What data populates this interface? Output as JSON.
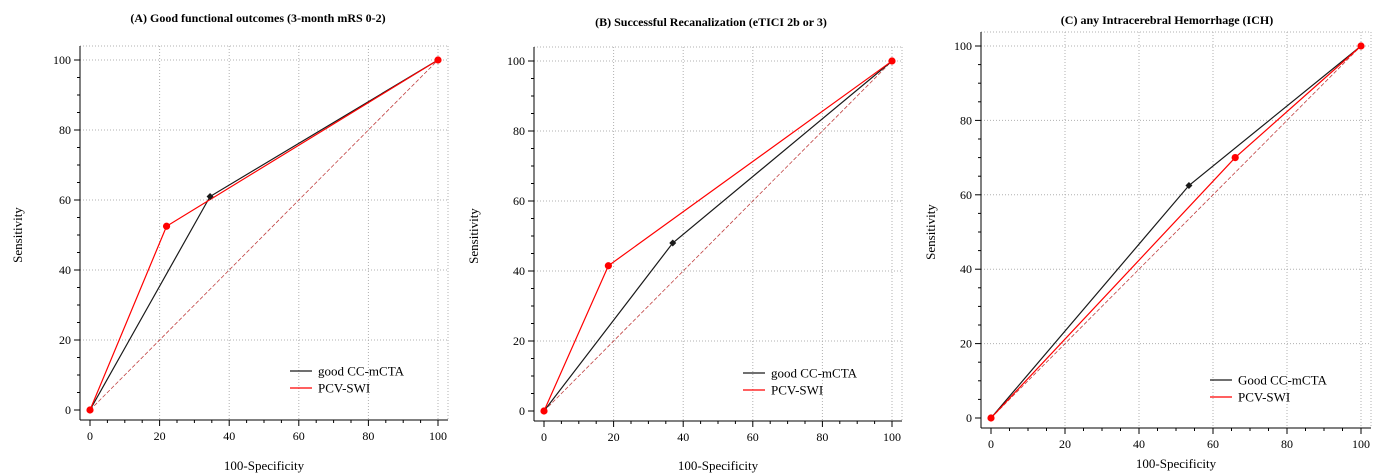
{
  "colors": {
    "series1": "#1a1a1a",
    "series2": "#ff0000",
    "diagonal": "#c04040",
    "grid": "#b0b0b0"
  },
  "chart_data": [
    {
      "type": "line",
      "title": "(A) Good functional outcomes (3-month mRS 0-2)",
      "xlabel": "100-Specificity",
      "ylabel": "Sensitivity",
      "xlim": [
        0,
        100
      ],
      "ylim": [
        0,
        100
      ],
      "xticks": [
        "0",
        "20",
        "40",
        "60",
        "80",
        "100"
      ],
      "yticks": [
        "0",
        "20",
        "40",
        "60",
        "80",
        "100"
      ],
      "grid": true,
      "legend_position": "bottom-right",
      "reference_line": [
        [
          0,
          0
        ],
        [
          100,
          100
        ]
      ],
      "series": [
        {
          "name": "good CC-mCTA",
          "points": [
            [
              0,
              0
            ],
            [
              34.5,
              61
            ],
            [
              100,
              100
            ]
          ]
        },
        {
          "name": "PCV-SWI",
          "points": [
            [
              0,
              0
            ],
            [
              22,
              52.5
            ],
            [
              100,
              100
            ]
          ]
        }
      ]
    },
    {
      "type": "line",
      "title": "(B) Successful Recanalization (eTICI 2b or 3)",
      "xlabel": "100-Specificity",
      "ylabel": "Sensitivity",
      "xlim": [
        0,
        100
      ],
      "ylim": [
        0,
        100
      ],
      "xticks": [
        "0",
        "20",
        "40",
        "60",
        "80",
        "100"
      ],
      "yticks": [
        "0",
        "20",
        "40",
        "60",
        "80",
        "100"
      ],
      "grid": true,
      "legend_position": "bottom-right",
      "reference_line": [
        [
          0,
          0
        ],
        [
          100,
          100
        ]
      ],
      "series": [
        {
          "name": "good CC-mCTA",
          "points": [
            [
              0,
              0
            ],
            [
              37,
              48
            ],
            [
              100,
              100
            ]
          ]
        },
        {
          "name": "PCV-SWI",
          "points": [
            [
              0,
              0
            ],
            [
              18.5,
              41.5
            ],
            [
              100,
              100
            ]
          ]
        }
      ]
    },
    {
      "type": "line",
      "title": "(C) any Intracerebral Hemorrhage (ICH)",
      "xlabel": "100-Specificity",
      "ylabel": "Sensitivity",
      "xlim": [
        0,
        100
      ],
      "ylim": [
        0,
        100
      ],
      "xticks": [
        "0",
        "20",
        "40",
        "60",
        "80",
        "100"
      ],
      "yticks": [
        "0",
        "20",
        "40",
        "60",
        "80",
        "100"
      ],
      "grid": true,
      "legend_position": "bottom-right",
      "reference_line": [
        [
          0,
          0
        ],
        [
          100,
          100
        ]
      ],
      "series": [
        {
          "name": "Good CC-mCTA",
          "points": [
            [
              0,
              0
            ],
            [
              53.5,
              62.5
            ],
            [
              100,
              100
            ]
          ]
        },
        {
          "name": "PCV-SWI",
          "points": [
            [
              0,
              0
            ],
            [
              66,
              70
            ],
            [
              100,
              100
            ]
          ]
        }
      ]
    }
  ]
}
